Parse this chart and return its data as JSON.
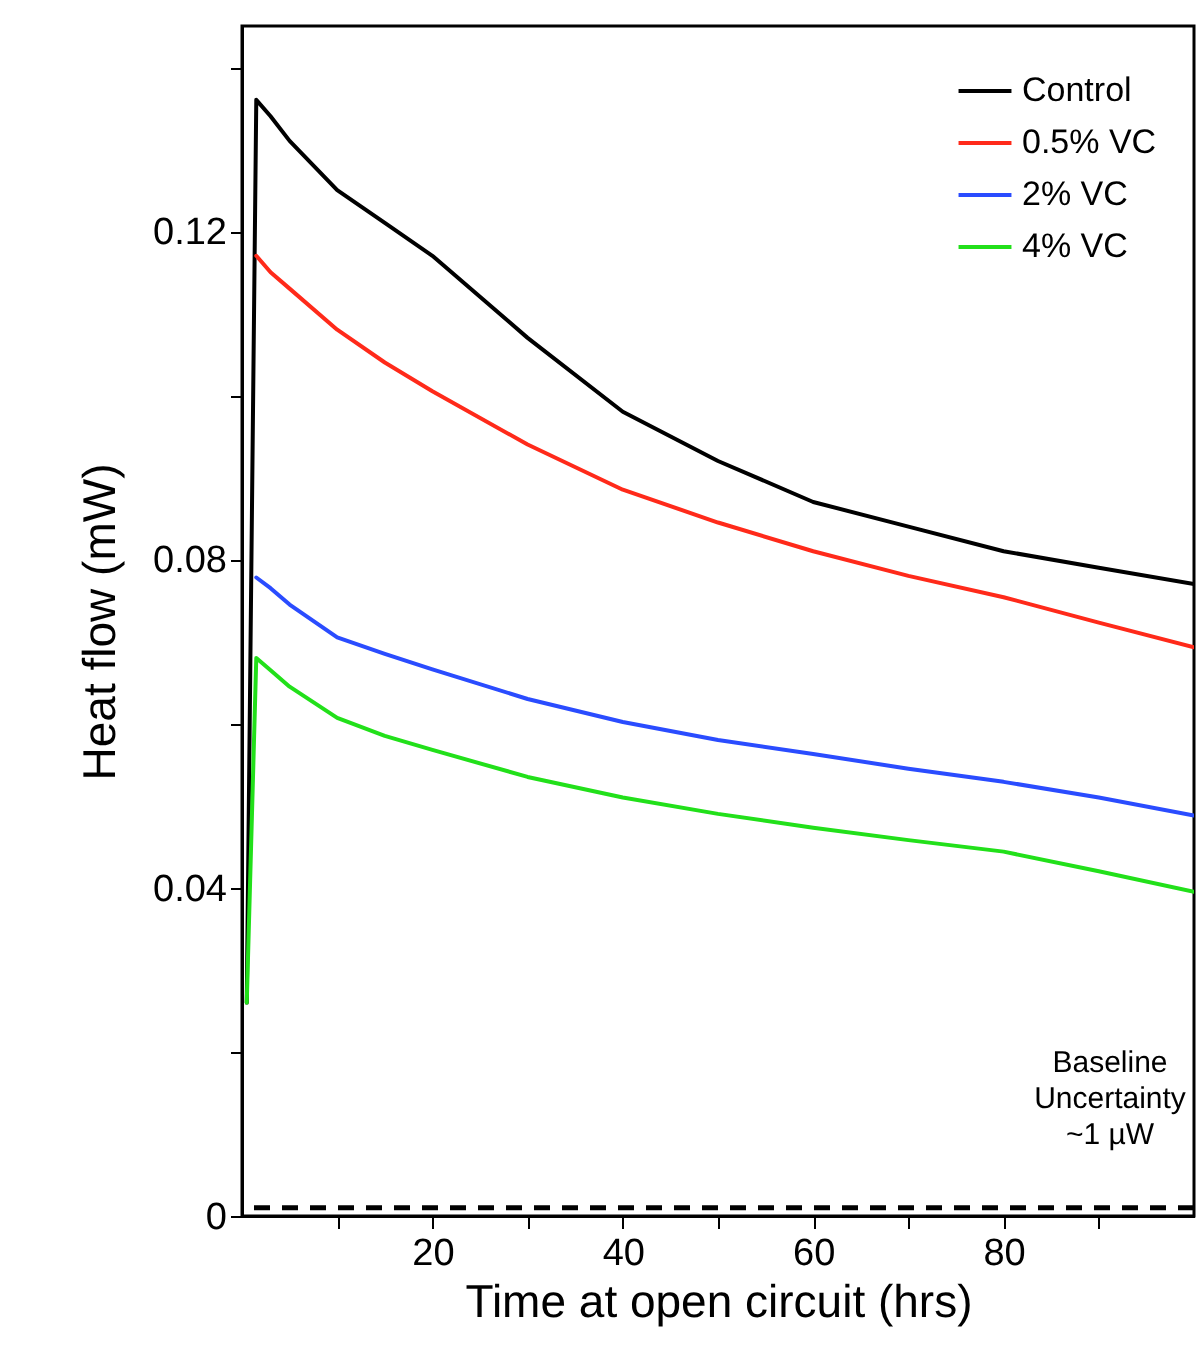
{
  "chart_data": {
    "type": "line",
    "xlabel": "Time at open circuit (hrs)",
    "ylabel": "Heat flow (mW)",
    "xlim": [
      0,
      100
    ],
    "ylim": [
      0,
      0.145
    ],
    "xticks": [
      {
        "value": 10,
        "label": null
      },
      20,
      {
        "value": 30,
        "label": null
      },
      40,
      {
        "value": 50,
        "label": null
      },
      60,
      {
        "value": 70,
        "label": null
      },
      80,
      {
        "value": 90,
        "label": null
      }
    ],
    "yticks": [
      {
        "value": 0,
        "label": "0"
      },
      {
        "value": 0.02,
        "label": null
      },
      0.04,
      {
        "value": 0.06,
        "label": null
      },
      0.08,
      {
        "value": 0.1,
        "label": null
      },
      0.12,
      {
        "value": 0.14,
        "label": null
      }
    ],
    "x": [
      0.5,
      1.5,
      3,
      5,
      10,
      15,
      20,
      30,
      40,
      50,
      60,
      70,
      80,
      90,
      100
    ],
    "series": [
      {
        "name": "Control",
        "color": "#000000",
        "values": [
          0.026,
          0.136,
          0.134,
          0.131,
          0.125,
          0.121,
          0.117,
          0.107,
          0.098,
          0.092,
          0.087,
          0.084,
          0.081,
          0.079,
          0.077
        ]
      },
      {
        "name": "0.5% VC",
        "color": "#ff2a1a",
        "values": [
          null,
          0.117,
          0.115,
          0.113,
          0.108,
          0.104,
          0.1005,
          0.094,
          0.0885,
          0.0845,
          0.081,
          0.078,
          0.0754,
          0.0723,
          0.0693
        ]
      },
      {
        "name": "2% VC",
        "color": "#2a4cff",
        "values": [
          null,
          0.0778,
          0.0765,
          0.0745,
          0.0705,
          0.0685,
          0.0666,
          0.063,
          0.0602,
          0.058,
          0.0563,
          0.0545,
          0.0529,
          0.051,
          0.0488
        ]
      },
      {
        "name": "4% VC",
        "color": "#22e01a",
        "values": [
          0.026,
          0.068,
          0.0665,
          0.0645,
          0.0607,
          0.0585,
          0.0568,
          0.0535,
          0.051,
          0.049,
          0.0473,
          0.0458,
          0.0444,
          0.042,
          0.0395
        ]
      }
    ],
    "ref_lines": [
      {
        "axis": "y",
        "value": 0.001,
        "label": "Baseline\nUncertainty\n~1 µW",
        "color": "#000000",
        "line_style": "dashed"
      }
    ],
    "legend": "top right",
    "grid": false,
    "line_style": "solid",
    "marker": "none"
  }
}
